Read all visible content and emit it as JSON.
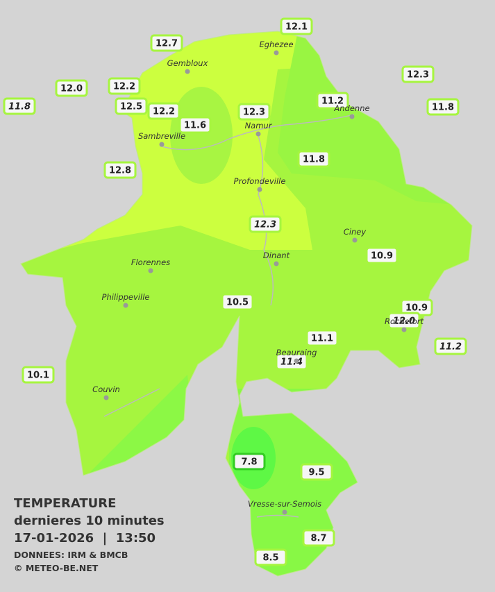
{
  "legend": {
    "title": "TEMPERATURE",
    "subtitle": "dernieres 10 minutes",
    "datetime": "17-01-2026  |  13:50",
    "source": "DONNEES: IRM & BMCB",
    "copyright": "© METEO-BE.NET"
  },
  "cities": [
    "Eghezee",
    "Gembloux",
    "Andenne",
    "Namur",
    "Sambreville",
    "Profondeville",
    "Ciney",
    "Dinant",
    "Florennes",
    "Philippeville",
    "Rochefort",
    "Beauraing",
    "Couvin",
    "Vresse-sur-Semois"
  ],
  "stations": [
    {
      "label": "12.1"
    },
    {
      "label": "12.7"
    },
    {
      "label": "12.3"
    },
    {
      "label": "12.0"
    },
    {
      "label": "12.2"
    },
    {
      "label": "11.8",
      "italic": true
    },
    {
      "label": "12.5"
    },
    {
      "label": "12.2"
    },
    {
      "label": "11.6"
    },
    {
      "label": "12.3"
    },
    {
      "label": "11.2"
    },
    {
      "label": "11.8"
    },
    {
      "label": "11.8"
    },
    {
      "label": "12.8"
    },
    {
      "label": "12.3",
      "italic": true
    },
    {
      "label": "10.9"
    },
    {
      "label": "10.5"
    },
    {
      "label": "10.9"
    },
    {
      "label": "12.0",
      "italic": true
    },
    {
      "label": "11.1"
    },
    {
      "label": "11.4",
      "italic": true
    },
    {
      "label": "11.2",
      "italic": true
    },
    {
      "label": "10.1"
    },
    {
      "label": "7.8"
    },
    {
      "label": "9.5"
    },
    {
      "label": "8.7"
    },
    {
      "label": "8.5"
    }
  ]
}
